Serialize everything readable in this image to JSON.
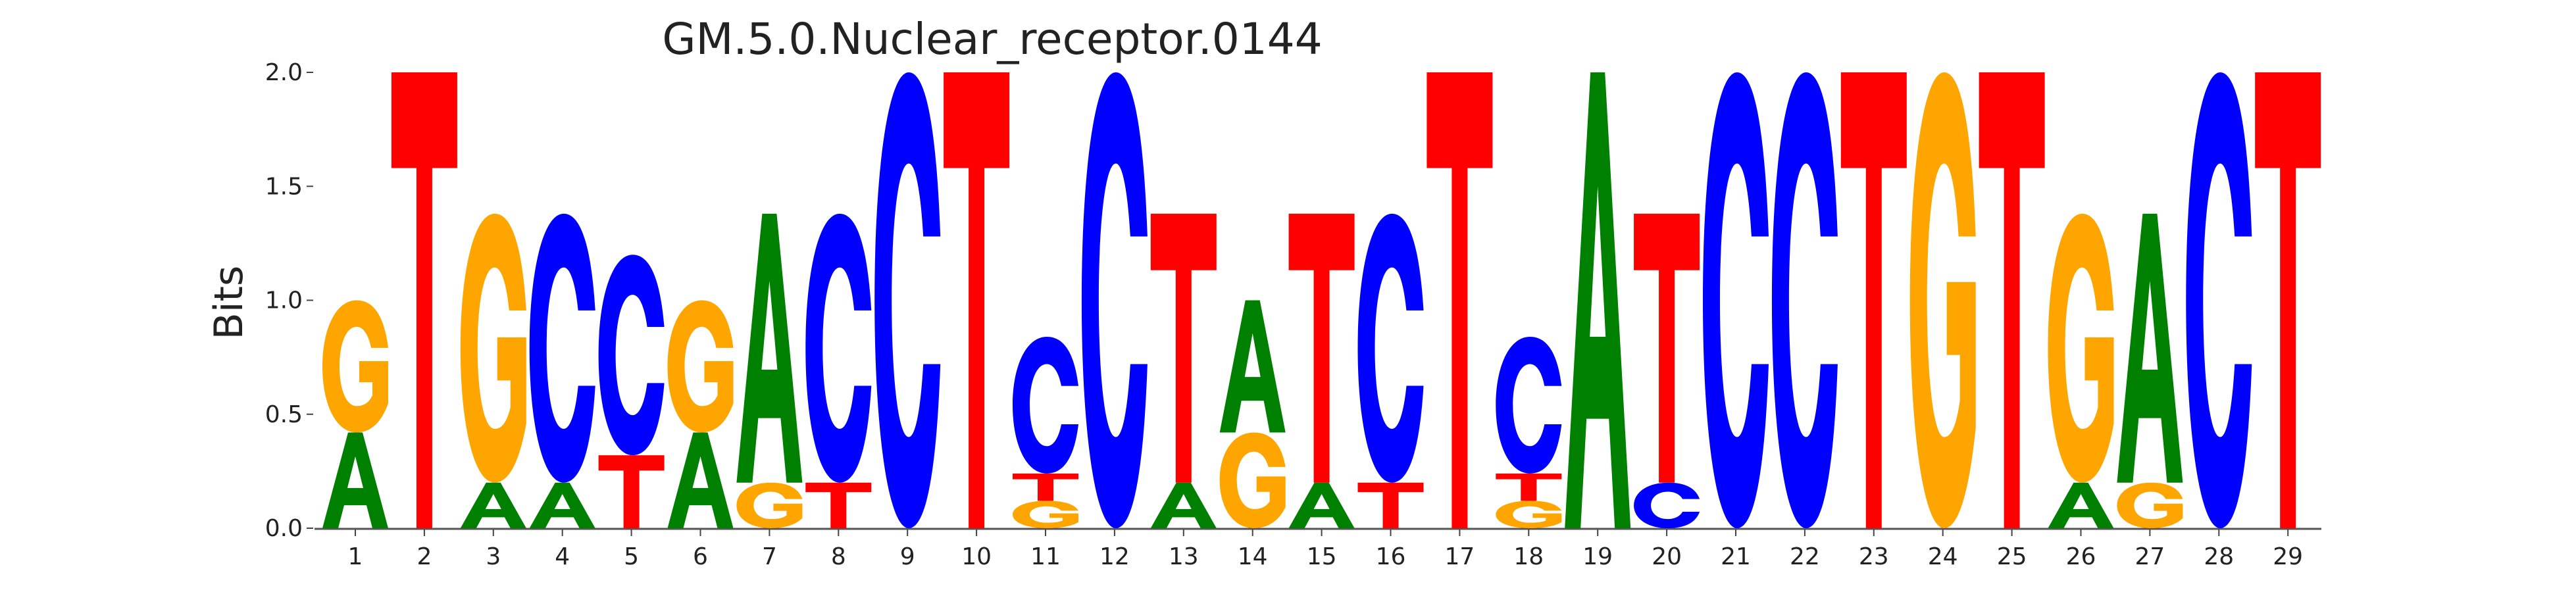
{
  "chart_data": {
    "type": "sequence-logo",
    "title": "GM.5.0.Nuclear_receptor.0144",
    "xlabel": "",
    "ylabel": "Bits",
    "ylim": [
      0,
      2.0
    ],
    "yticks": [
      "0.0",
      "0.5",
      "1.0",
      "1.5",
      "2.0"
    ],
    "letter_colors": {
      "A": "#008000",
      "C": "#0000ff",
      "G": "#ffa500",
      "T": "#ff0000"
    },
    "positions": [
      {
        "label": "1",
        "letters": [
          {
            "base": "A",
            "height": 0.42
          },
          {
            "base": "G",
            "height": 0.58
          }
        ]
      },
      {
        "label": "2",
        "letters": [
          {
            "base": "T",
            "height": 2.0
          }
        ]
      },
      {
        "label": "3",
        "letters": [
          {
            "base": "A",
            "height": 0.2
          },
          {
            "base": "G",
            "height": 1.18
          }
        ]
      },
      {
        "label": "4",
        "letters": [
          {
            "base": "A",
            "height": 0.2
          },
          {
            "base": "C",
            "height": 1.18
          }
        ]
      },
      {
        "label": "5",
        "letters": [
          {
            "base": "T",
            "height": 0.32
          },
          {
            "base": "C",
            "height": 0.88
          }
        ]
      },
      {
        "label": "6",
        "letters": [
          {
            "base": "A",
            "height": 0.42
          },
          {
            "base": "G",
            "height": 0.58
          }
        ]
      },
      {
        "label": "7",
        "letters": [
          {
            "base": "G",
            "height": 0.2
          },
          {
            "base": "A",
            "height": 1.18
          }
        ]
      },
      {
        "label": "8",
        "letters": [
          {
            "base": "T",
            "height": 0.2
          },
          {
            "base": "C",
            "height": 1.18
          }
        ]
      },
      {
        "label": "9",
        "letters": [
          {
            "base": "C",
            "height": 2.0
          }
        ]
      },
      {
        "label": "10",
        "letters": [
          {
            "base": "T",
            "height": 2.0
          }
        ]
      },
      {
        "label": "11",
        "letters": [
          {
            "base": "G",
            "height": 0.12
          },
          {
            "base": "T",
            "height": 0.12
          },
          {
            "base": "C",
            "height": 0.6
          }
        ]
      },
      {
        "label": "12",
        "letters": [
          {
            "base": "C",
            "height": 2.0
          }
        ]
      },
      {
        "label": "13",
        "letters": [
          {
            "base": "A",
            "height": 0.2
          },
          {
            "base": "T",
            "height": 1.18
          }
        ]
      },
      {
        "label": "14",
        "letters": [
          {
            "base": "G",
            "height": 0.42
          },
          {
            "base": "A",
            "height": 0.58
          }
        ]
      },
      {
        "label": "15",
        "letters": [
          {
            "base": "A",
            "height": 0.2
          },
          {
            "base": "T",
            "height": 1.18
          }
        ]
      },
      {
        "label": "16",
        "letters": [
          {
            "base": "T",
            "height": 0.2
          },
          {
            "base": "C",
            "height": 1.18
          }
        ]
      },
      {
        "label": "17",
        "letters": [
          {
            "base": "T",
            "height": 2.0
          }
        ]
      },
      {
        "label": "18",
        "letters": [
          {
            "base": "G",
            "height": 0.12
          },
          {
            "base": "T",
            "height": 0.12
          },
          {
            "base": "C",
            "height": 0.6
          }
        ]
      },
      {
        "label": "19",
        "letters": [
          {
            "base": "A",
            "height": 2.0
          }
        ]
      },
      {
        "label": "20",
        "letters": [
          {
            "base": "C",
            "height": 0.2
          },
          {
            "base": "T",
            "height": 1.18
          }
        ]
      },
      {
        "label": "21",
        "letters": [
          {
            "base": "C",
            "height": 2.0
          }
        ]
      },
      {
        "label": "22",
        "letters": [
          {
            "base": "C",
            "height": 2.0
          }
        ]
      },
      {
        "label": "23",
        "letters": [
          {
            "base": "T",
            "height": 2.0
          }
        ]
      },
      {
        "label": "24",
        "letters": [
          {
            "base": "G",
            "height": 2.0
          }
        ]
      },
      {
        "label": "25",
        "letters": [
          {
            "base": "T",
            "height": 2.0
          }
        ]
      },
      {
        "label": "26",
        "letters": [
          {
            "base": "A",
            "height": 0.2
          },
          {
            "base": "G",
            "height": 1.18
          }
        ]
      },
      {
        "label": "27",
        "letters": [
          {
            "base": "G",
            "height": 0.2
          },
          {
            "base": "A",
            "height": 1.18
          }
        ]
      },
      {
        "label": "28",
        "letters": [
          {
            "base": "C",
            "height": 2.0
          }
        ]
      },
      {
        "label": "29",
        "letters": [
          {
            "base": "T",
            "height": 2.0
          }
        ]
      }
    ]
  }
}
